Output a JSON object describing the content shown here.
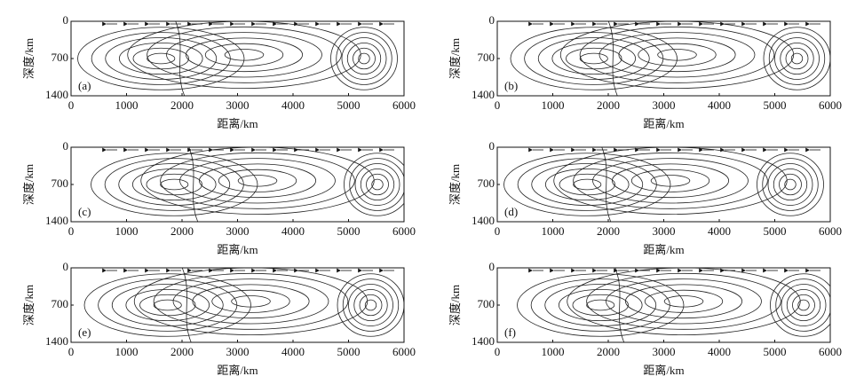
{
  "chart_data": [
    {
      "type": "streamplot",
      "panel_label": "(a)",
      "xlabel": "距离/km",
      "ylabel": "深度/km",
      "xlim": [
        0,
        6000
      ],
      "ylim": [
        0,
        1400
      ],
      "yaxis_inverted": true,
      "xticks": [
        0,
        1000,
        2000,
        3000,
        4000,
        5000,
        6000
      ],
      "yticks": [
        0,
        700,
        1400
      ]
    },
    {
      "type": "streamplot",
      "panel_label": "(b)",
      "xlabel": "距离/km",
      "ylabel": "深度/km",
      "xlim": [
        0,
        6000
      ],
      "ylim": [
        0,
        1400
      ],
      "yaxis_inverted": true,
      "xticks": [
        0,
        1000,
        2000,
        3000,
        4000,
        5000,
        6000
      ],
      "yticks": [
        0,
        700,
        1400
      ]
    },
    {
      "type": "streamplot",
      "panel_label": "(c)",
      "xlabel": "距离/km",
      "ylabel": "深度/km",
      "xlim": [
        0,
        6000
      ],
      "ylim": [
        0,
        1400
      ],
      "yaxis_inverted": true,
      "xticks": [
        0,
        1000,
        2000,
        3000,
        4000,
        5000,
        6000
      ],
      "yticks": [
        0,
        700,
        1400
      ]
    },
    {
      "type": "streamplot",
      "panel_label": "(d)",
      "xlabel": "距离/km",
      "ylabel": "深度/km",
      "xlim": [
        0,
        6000
      ],
      "ylim": [
        0,
        1400
      ],
      "yaxis_inverted": true,
      "xticks": [
        0,
        1000,
        2000,
        3000,
        4000,
        5000,
        6000
      ],
      "yticks": [
        0,
        700,
        1400
      ]
    },
    {
      "type": "streamplot",
      "panel_label": "(e)",
      "xlabel": "距离/km",
      "ylabel": "深度/km",
      "xlim": [
        0,
        6000
      ],
      "ylim": [
        0,
        1400
      ],
      "yaxis_inverted": true,
      "xticks": [
        0,
        1000,
        2000,
        3000,
        4000,
        5000,
        6000
      ],
      "yticks": [
        0,
        700,
        1400
      ]
    },
    {
      "type": "streamplot",
      "panel_label": "(f)",
      "xlabel": "距离/km",
      "ylabel": "深度/km",
      "xlim": [
        0,
        6000
      ],
      "ylim": [
        0,
        1400
      ],
      "yaxis_inverted": true,
      "xticks": [
        0,
        1000,
        2000,
        3000,
        4000,
        5000,
        6000
      ],
      "yticks": [
        0,
        700,
        1400
      ]
    }
  ]
}
